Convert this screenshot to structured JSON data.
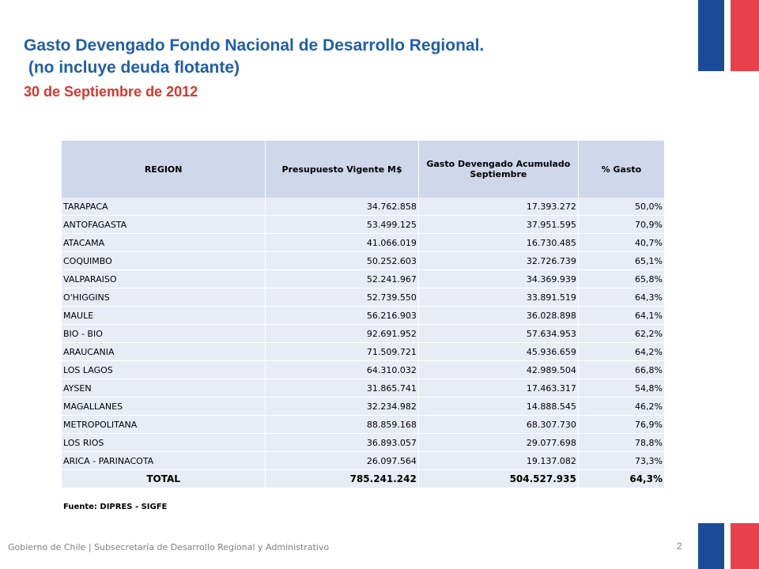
{
  "colors": {
    "title": "#1f5fa8",
    "date": "#d9352f",
    "header_bg": "#cfd7ea",
    "row_bg": "#e8ecf5",
    "flag_blue": "#1b4c9a",
    "flag_red": "#e8414c"
  },
  "header": {
    "title_line1": "Gasto Devengado Fondo Nacional de Desarrollo Regional.",
    "title_line2": " (no incluye deuda flotante)",
    "date": "30 de Septiembre de 2012"
  },
  "table": {
    "columns": [
      "REGION",
      "Presupuesto Vigente M$",
      "Gasto Devengado Acumulado Septiembre",
      "% Gasto"
    ],
    "rows": [
      [
        "TARAPACA",
        "34.762.858",
        "17.393.272",
        "50,0%"
      ],
      [
        "ANTOFAGASTA",
        "53.499.125",
        "37.951.595",
        "70,9%"
      ],
      [
        "ATACAMA",
        "41.066.019",
        "16.730.485",
        "40,7%"
      ],
      [
        "COQUIMBO",
        "50.252.603",
        "32.726.739",
        "65,1%"
      ],
      [
        "VALPARAISO",
        "52.241.967",
        "34.369.939",
        "65,8%"
      ],
      [
        "O'HIGGINS",
        "52.739.550",
        "33.891.519",
        "64,3%"
      ],
      [
        "MAULE",
        "56.216.903",
        "36.028.898",
        "64,1%"
      ],
      [
        "BIO - BIO",
        "92.691.952",
        "57.634.953",
        "62,2%"
      ],
      [
        "ARAUCANIA",
        "71.509.721",
        "45.936.659",
        "64,2%"
      ],
      [
        "LOS LAGOS",
        "64.310.032",
        "42.989.504",
        "66,8%"
      ],
      [
        "AYSEN",
        "31.865.741",
        "17.463.317",
        "54,8%"
      ],
      [
        "MAGALLANES",
        "32.234.982",
        "14.888.545",
        "46,2%"
      ],
      [
        "METROPOLITANA",
        "88.859.168",
        "68.307.730",
        "76,9%"
      ],
      [
        "LOS RIOS",
        "36.893.057",
        "29.077.698",
        "78,8%"
      ],
      [
        "ARICA - PARINACOTA",
        "26.097.564",
        "19.137.082",
        "73,3%"
      ]
    ],
    "total": [
      "TOTAL",
      "785.241.242",
      "504.527.935",
      "64,3%"
    ]
  },
  "source": "Fuente: DIPRES - SIGFE",
  "footer": {
    "text": "Gobierno de Chile | Subsecretaría de Desarrollo Regional y Administrativo",
    "page_number": "2"
  }
}
